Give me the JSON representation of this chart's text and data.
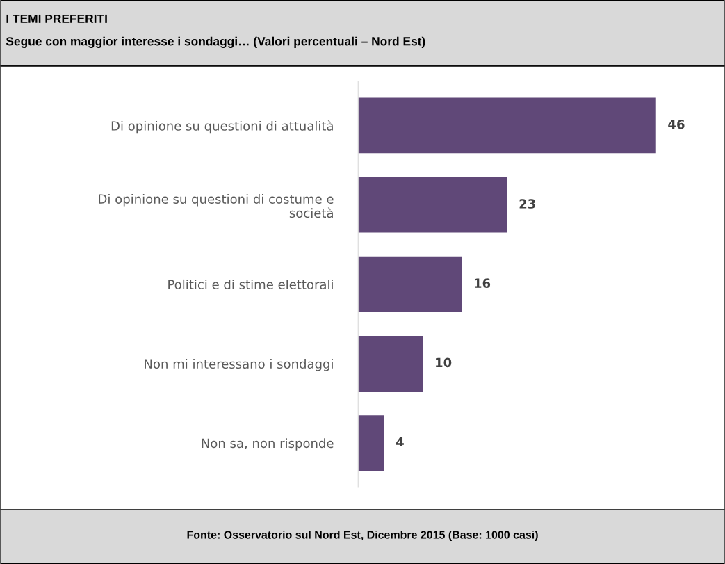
{
  "chart_data": {
    "type": "bar",
    "orientation": "horizontal",
    "title": "I TEMI PREFERITI",
    "subtitle": "Segue con maggior interesse i sondaggi… (Valori percentuali – Nord Est)",
    "categories": [
      "Di opinione su questioni di attualità",
      "Di opinione su questioni di costume e società",
      "Politici e di stime elettorali",
      "Non mi interessano i sondaggi",
      "Non sa, non risponde"
    ],
    "values": [
      46,
      23,
      16,
      10,
      4
    ],
    "color": "#604878",
    "data_labels": true,
    "grid": false,
    "legend": false,
    "tick_labels": "y",
    "annotations": [
      "Fonte: Osservatorio sul Nord Est, Dicembre 2015 (Base: 1000 casi)"
    ]
  }
}
